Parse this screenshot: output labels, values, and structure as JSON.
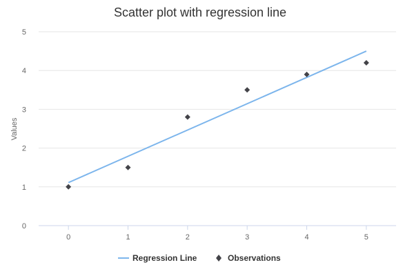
{
  "chart_data": {
    "type": "scatter",
    "title": "Scatter plot with regression line",
    "xlabel": "",
    "ylabel": "Values",
    "xlim": [
      -0.5,
      5.5
    ],
    "ylim": [
      0,
      5
    ],
    "x_ticks": [
      "0",
      "1",
      "2",
      "3",
      "4",
      "5"
    ],
    "y_ticks": [
      "0",
      "1",
      "2",
      "3",
      "4",
      "5"
    ],
    "grid": true,
    "legend_position": "bottom",
    "series": [
      {
        "name": "Regression Line",
        "kind": "line",
        "color": "#7cb5ec",
        "points": [
          [
            0,
            1.11
          ],
          [
            5,
            4.5
          ]
        ]
      },
      {
        "name": "Observations",
        "kind": "scatter",
        "marker": "diamond",
        "color": "#434348",
        "points": [
          [
            0,
            1
          ],
          [
            1,
            1.5
          ],
          [
            2,
            2.8
          ],
          [
            3,
            3.5
          ],
          [
            4,
            3.9
          ],
          [
            5,
            4.2
          ]
        ]
      }
    ]
  }
}
